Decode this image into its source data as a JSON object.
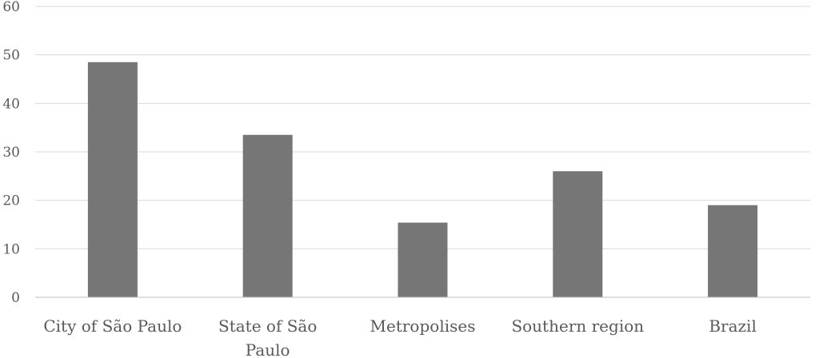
{
  "chart_data": {
    "type": "bar",
    "categories": [
      "City of São Paulo",
      "State of São Paulo",
      "Metropolises",
      "Southern region",
      "Brazil"
    ],
    "category_lines": [
      [
        "City of São Paulo"
      ],
      [
        "State of São",
        "Paulo"
      ],
      [
        "Metropolises"
      ],
      [
        "Southern region"
      ],
      [
        "Brazil"
      ]
    ],
    "values": [
      48.5,
      33.5,
      15.4,
      26.0,
      19.0
    ],
    "title": "",
    "xlabel": "",
    "ylabel": "",
    "ylim": [
      0,
      60
    ],
    "yticks": [
      0,
      10,
      20,
      30,
      40,
      50,
      60
    ],
    "grid": true,
    "bar_color": "#767676"
  }
}
